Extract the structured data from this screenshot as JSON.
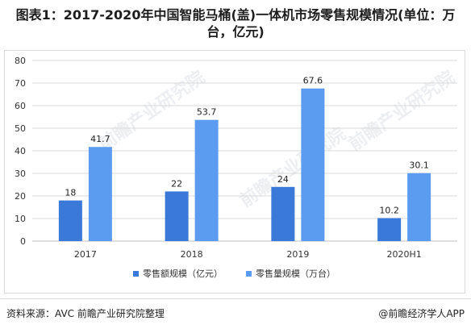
{
  "title": "图表1：2017-2020年中国智能马桶(盖)一体机市场零售规模情况(单位：万台，亿元)",
  "footer": {
    "source": "资料来源：AVC 前瞻产业研究院整理",
    "credit": "@前瞻经济学人APP"
  },
  "watermark": {
    "text": "前瞻产业研究院"
  },
  "colors": {
    "series1": "#3b79d8",
    "series2": "#5b9bf0",
    "grid": "#d9d9d9",
    "axis": "#bfbfbf"
  },
  "chart_data": {
    "type": "bar",
    "categories": [
      "2017",
      "2018",
      "2019",
      "2020H1"
    ],
    "series": [
      {
        "name": "零售额规模（亿元）",
        "values": [
          18,
          22,
          24,
          10.2
        ]
      },
      {
        "name": "零售量规模（万台）",
        "values": [
          41.7,
          53.7,
          67.6,
          30.1
        ]
      }
    ],
    "value_labels": [
      [
        "18",
        "22",
        "24",
        "10.2"
      ],
      [
        "41.7",
        "53.7",
        "67.6",
        "30.1"
      ]
    ],
    "ylim": [
      0,
      80
    ],
    "yticks": [
      0,
      10,
      20,
      30,
      40,
      50,
      60,
      70,
      80
    ],
    "grid": true,
    "legend_position": "bottom"
  }
}
